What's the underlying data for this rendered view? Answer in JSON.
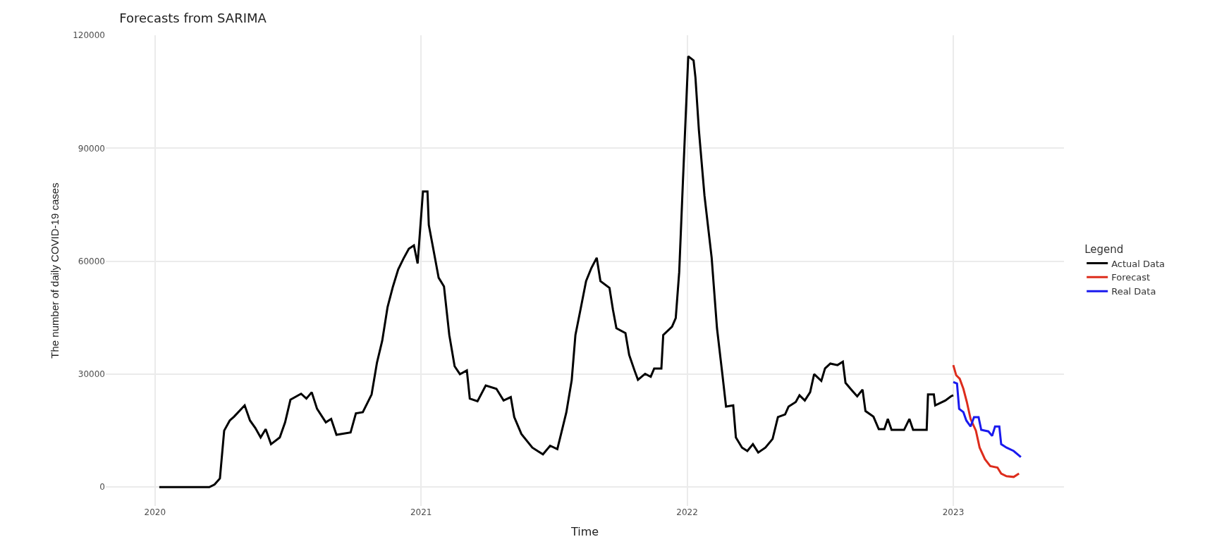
{
  "chart_data": {
    "type": "line",
    "title": "Forecasts from SARIMA",
    "xlabel": "Time",
    "ylabel": "The number of daily COVID-19 cases",
    "legend_title": "Legend",
    "xlim": [
      2019.815,
      2023.416
    ],
    "xticks": [
      2020,
      2021,
      2022,
      2023
    ],
    "ylim": [
      -5000,
      120000
    ],
    "yticks": [
      0,
      30000,
      60000,
      90000,
      120000
    ],
    "grid": true,
    "legend": "right",
    "marker": "none",
    "line_style": "solid",
    "series": [
      {
        "name": "Actual Data",
        "color": "#000000",
        "x": [
          2020.016,
          2020.204,
          2020.224,
          2020.244,
          2020.26,
          2020.281,
          2020.297,
          2020.337,
          2020.357,
          2020.377,
          2020.397,
          2020.416,
          2020.436,
          2020.469,
          2020.489,
          2020.509,
          2020.549,
          2020.569,
          2020.589,
          2020.609,
          2020.642,
          2020.662,
          2020.682,
          2020.735,
          2020.755,
          2020.781,
          2020.814,
          2020.834,
          2020.854,
          2020.874,
          2020.894,
          2020.914,
          2020.934,
          2020.954,
          2020.973,
          2020.987,
          2021.007,
          2021.024,
          2021.029,
          2021.046,
          2021.066,
          2021.086,
          2021.106,
          2021.126,
          2021.146,
          2021.172,
          2021.183,
          2021.212,
          2021.243,
          2021.283,
          2021.31,
          2021.337,
          2021.35,
          2021.377,
          2021.418,
          2021.458,
          2021.485,
          2021.512,
          2021.526,
          2021.546,
          2021.566,
          2021.58,
          2021.6,
          2021.62,
          2021.64,
          2021.66,
          2021.674,
          2021.708,
          2021.721,
          2021.734,
          2021.768,
          2021.782,
          2021.802,
          2021.815,
          2021.842,
          2021.863,
          2021.876,
          2021.903,
          2021.91,
          2021.943,
          2021.957,
          2021.97,
          2021.984,
          2022.004,
          2022.024,
          2022.031,
          2022.044,
          2022.065,
          2022.092,
          2022.112,
          2022.132,
          2022.146,
          2022.173,
          2022.183,
          2022.206,
          2022.226,
          2022.247,
          2022.267,
          2022.294,
          2022.321,
          2022.341,
          2022.368,
          2022.381,
          2022.408,
          2022.422,
          2022.442,
          2022.462,
          2022.477,
          2022.504,
          2022.518,
          2022.538,
          2022.565,
          2022.585,
          2022.595,
          2022.619,
          2022.639,
          2022.659,
          2022.67,
          2022.7,
          2022.72,
          2022.741,
          2022.754,
          2022.768,
          2022.815,
          2022.835,
          2022.849,
          2022.9,
          2022.905,
          2022.927,
          2022.932,
          2022.97,
          2022.991,
          2023.0
        ],
        "values": [
          0,
          0,
          700,
          2300,
          15000,
          17700,
          18700,
          21700,
          17700,
          15700,
          13200,
          15400,
          11400,
          13200,
          17200,
          23200,
          24800,
          23500,
          25200,
          20800,
          17200,
          18100,
          13900,
          14500,
          19600,
          19900,
          24600,
          33000,
          38900,
          47800,
          53200,
          57800,
          60700,
          63300,
          64200,
          59400,
          78500,
          78500,
          69600,
          63200,
          55600,
          53300,
          40400,
          32100,
          30000,
          31000,
          23500,
          22800,
          27000,
          26100,
          23000,
          23900,
          18600,
          14100,
          10500,
          8700,
          11000,
          10100,
          14100,
          19900,
          28400,
          40400,
          47500,
          54700,
          58200,
          60900,
          54700,
          52900,
          47100,
          42200,
          40900,
          35100,
          31000,
          28500,
          30100,
          29300,
          31500,
          31500,
          40400,
          42600,
          44900,
          57100,
          81200,
          114400,
          113300,
          108800,
          94800,
          77400,
          60900,
          42200,
          30100,
          21400,
          21700,
          13200,
          10500,
          9600,
          11400,
          9200,
          10500,
          12800,
          18600,
          19300,
          21400,
          22600,
          24400,
          23000,
          25200,
          30000,
          28200,
          31500,
          32800,
          32400,
          33300,
          27700,
          25700,
          24100,
          25900,
          20200,
          18700,
          15400,
          15400,
          18100,
          15200,
          15200,
          18100,
          15200,
          15200,
          24600,
          24600,
          21700,
          23000,
          24100,
          24400
        ]
      },
      {
        "name": "Forecast",
        "color": "#dd2c1c",
        "x": [
          2023.0,
          2023.011,
          2023.024,
          2023.038,
          2023.051,
          2023.065,
          2023.085,
          2023.099,
          2023.119,
          2023.139,
          2023.166,
          2023.18,
          2023.2,
          2023.227,
          2023.247
        ],
        "values": [
          32400,
          29700,
          28800,
          26100,
          22600,
          18100,
          15000,
          10500,
          7400,
          5600,
          5200,
          3600,
          2900,
          2700,
          3600
        ]
      },
      {
        "name": "Real Data",
        "color": "#1a1aee",
        "x": [
          2023.0,
          2023.014,
          2023.022,
          2023.038,
          2023.049,
          2023.065,
          2023.078,
          2023.095,
          2023.105,
          2023.132,
          2023.146,
          2023.157,
          2023.173,
          2023.18,
          2023.2,
          2023.227,
          2023.254
        ],
        "values": [
          27900,
          27500,
          20800,
          19900,
          17700,
          16100,
          18600,
          18600,
          15200,
          14800,
          13600,
          16100,
          16100,
          11400,
          10500,
          9600,
          8000
        ]
      }
    ]
  }
}
